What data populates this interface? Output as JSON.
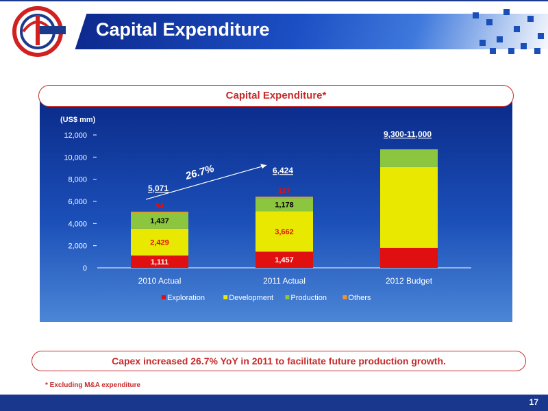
{
  "slide": {
    "title": "Capital Expenditure",
    "page_number": "17",
    "chart_heading": "Capital Expenditure*",
    "highlight": "Capex increased 26.7% YoY in 2011 to facilitate future production growth.",
    "footnote": "* Excluding M&A expenditure"
  },
  "chart_data": {
    "type": "bar",
    "stacked": true,
    "ylabel": "(US$ mm)",
    "ylim": [
      0,
      12000
    ],
    "yticks": [
      0,
      2000,
      4000,
      6000,
      8000,
      10000,
      12000
    ],
    "ytick_labels": [
      "0",
      "2,000",
      "4,000",
      "6,000",
      "8,000",
      "10,000",
      "12,000"
    ],
    "categories": [
      "2010 Actual",
      "2011 Actual",
      "2012 Budget"
    ],
    "series": [
      {
        "name": "Exploration",
        "color": "#e01010",
        "values": [
          1111,
          1457,
          1800
        ],
        "labels": [
          "1,111",
          "1,457",
          ""
        ],
        "label_color": "#ffffff"
      },
      {
        "name": "Development",
        "color": "#e8e800",
        "values": [
          2429,
          3662,
          7300
        ],
        "labels": [
          "2,429",
          "3,662",
          ""
        ],
        "label_color": "#e01010"
      },
      {
        "name": "Production",
        "color": "#8cc63f",
        "values": [
          1437,
          1178,
          1600
        ],
        "labels": [
          "1,437",
          "1,178",
          ""
        ],
        "label_color": "#000000"
      },
      {
        "name": "Others",
        "color": "#f7941d",
        "values": [
          94,
          127,
          0
        ],
        "labels": [
          "94",
          "127",
          ""
        ],
        "label_color": "#e01010"
      }
    ],
    "totals": [
      "5,071",
      "6,424",
      "9,300-11,000"
    ],
    "growth_annotation": "26.7%",
    "legend_position": "bottom"
  }
}
